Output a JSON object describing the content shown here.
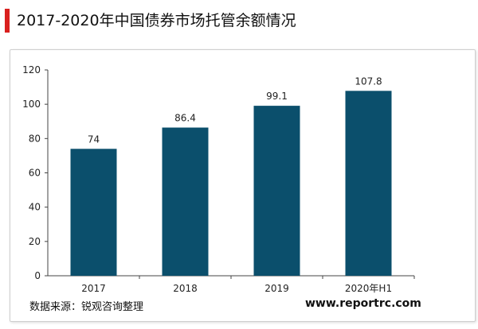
{
  "header": {
    "title": "2017-2020年中国债券市场托管余额情况"
  },
  "footer": {
    "source": "数据来源：锐观咨询整理",
    "website": "www.reportrc.com"
  },
  "colors": {
    "bar": "#0b4f6c",
    "accent": "#d9201e",
    "axis": "#444444"
  },
  "chart_data": {
    "type": "bar",
    "title": "2017-2020年中国债券市场托管余额情况",
    "xlabel": "",
    "ylabel": "",
    "categories": [
      "2017",
      "2018",
      "2019",
      "2020年H1"
    ],
    "values": [
      74,
      86.4,
      99.1,
      107.8
    ],
    "data_labels": [
      "74",
      "86.4",
      "99.1",
      "107.8"
    ],
    "ylim": [
      0,
      120
    ],
    "yticks": [
      0,
      20,
      40,
      60,
      80,
      100,
      120
    ],
    "grid": false,
    "legend": "none"
  }
}
